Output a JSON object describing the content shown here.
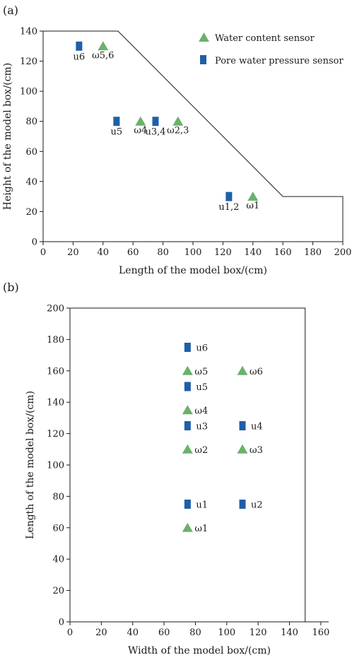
{
  "panel_labels": [
    "(a)",
    "(b)"
  ],
  "legend": {
    "water": "Water content sensor",
    "pore": "Pore water pressure sensor",
    "water_color": "#6ab26a",
    "pore_color": "#1f5fa8"
  },
  "chart_data": [
    {
      "type": "scatter",
      "panel": "(a)",
      "xlabel": "Length of the model box/(cm)",
      "ylabel": "Height of the model box/(cm)",
      "xlim": [
        0,
        200
      ],
      "ylim": [
        0,
        140
      ],
      "xticks": [
        0,
        20,
        40,
        60,
        80,
        100,
        120,
        140,
        160,
        180,
        200
      ],
      "yticks": [
        0,
        20,
        40,
        60,
        80,
        100,
        120,
        140
      ],
      "grid": false,
      "legend_position": "top-right",
      "outline": [
        [
          0,
          140
        ],
        [
          50,
          140
        ],
        [
          160,
          30
        ],
        [
          200,
          30
        ],
        [
          200,
          0
        ]
      ],
      "series": [
        {
          "name": "Water content sensor",
          "marker": "triangle",
          "points": [
            {
              "x": 40,
              "y": 130,
              "label": "ω5,6"
            },
            {
              "x": 65,
              "y": 80,
              "label": "ω4"
            },
            {
              "x": 90,
              "y": 80,
              "label": "ω2,3"
            },
            {
              "x": 140,
              "y": 30,
              "label": "ω1"
            }
          ]
        },
        {
          "name": "Pore water pressure sensor",
          "marker": "rect",
          "points": [
            {
              "x": 24,
              "y": 130,
              "label": "u6"
            },
            {
              "x": 49,
              "y": 80,
              "label": "u5"
            },
            {
              "x": 75,
              "y": 80,
              "label": "u3,4"
            },
            {
              "x": 124,
              "y": 30,
              "label": "u1,2"
            }
          ]
        }
      ]
    },
    {
      "type": "scatter",
      "panel": "(b)",
      "xlabel": "Width of the model box/(cm)",
      "ylabel": "Length of the model box/(cm)",
      "xlim": [
        0,
        165
      ],
      "ylim": [
        0,
        200
      ],
      "xticks": [
        0,
        20,
        40,
        60,
        80,
        100,
        120,
        140,
        160
      ],
      "yticks": [
        0,
        20,
        40,
        60,
        80,
        100,
        120,
        140,
        160,
        180,
        200
      ],
      "grid": false,
      "outline": [
        [
          0,
          200
        ],
        [
          150,
          200
        ],
        [
          150,
          0
        ]
      ],
      "series": [
        {
          "name": "Water content sensor",
          "marker": "triangle",
          "points": [
            {
              "x": 75,
              "y": 160,
              "label": "ω5"
            },
            {
              "x": 110,
              "y": 160,
              "label": "ω6"
            },
            {
              "x": 75,
              "y": 135,
              "label": "ω4"
            },
            {
              "x": 75,
              "y": 110,
              "label": "ω2"
            },
            {
              "x": 110,
              "y": 110,
              "label": "ω3"
            },
            {
              "x": 75,
              "y": 60,
              "label": "ω1"
            }
          ]
        },
        {
          "name": "Pore water pressure sensor",
          "marker": "rect",
          "points": [
            {
              "x": 75,
              "y": 175,
              "label": "u6"
            },
            {
              "x": 75,
              "y": 150,
              "label": "u5"
            },
            {
              "x": 75,
              "y": 125,
              "label": "u3"
            },
            {
              "x": 110,
              "y": 125,
              "label": "u4"
            },
            {
              "x": 75,
              "y": 75,
              "label": "u1"
            },
            {
              "x": 110,
              "y": 75,
              "label": "u2"
            }
          ]
        }
      ]
    }
  ]
}
